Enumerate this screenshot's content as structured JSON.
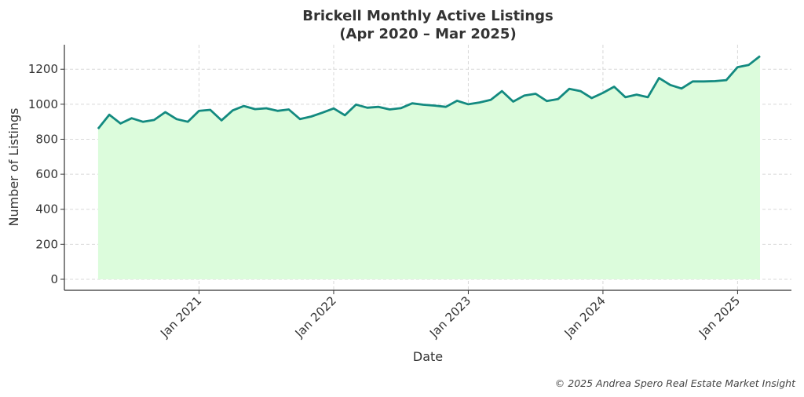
{
  "chart_data": {
    "type": "area",
    "title_line1": "Brickell Monthly Active Listings",
    "title_line2": "(Apr 2020 – Mar 2025)",
    "xlabel": "Date",
    "ylabel": "Number of Listings",
    "start_month": "2020-04",
    "x_ticks": [
      {
        "label": "Jan 2021",
        "month_index": 9
      },
      {
        "label": "Jan 2022",
        "month_index": 21
      },
      {
        "label": "Jan 2023",
        "month_index": 33
      },
      {
        "label": "Jan 2024",
        "month_index": 45
      },
      {
        "label": "Jan 2025",
        "month_index": 57
      }
    ],
    "y_ticks": [
      0,
      200,
      400,
      600,
      800,
      1000,
      1200
    ],
    "ylim": [
      -63,
      1340
    ],
    "xlim_months": [
      -3,
      61.8
    ],
    "grid": true,
    "line_color": "#138a80",
    "fill_color": "#dcfcdc",
    "values": [
      860,
      940,
      890,
      920,
      900,
      910,
      955,
      915,
      900,
      962,
      968,
      908,
      965,
      990,
      972,
      977,
      962,
      970,
      915,
      930,
      952,
      976,
      937,
      998,
      980,
      985,
      970,
      978,
      1005,
      997,
      992,
      985,
      1020,
      1000,
      1010,
      1025,
      1075,
      1015,
      1050,
      1060,
      1018,
      1030,
      1088,
      1075,
      1035,
      1065,
      1100,
      1040,
      1055,
      1040,
      1150,
      1110,
      1090,
      1130,
      1130,
      1132,
      1138,
      1212,
      1225,
      1275
    ]
  },
  "footer": "© 2025 Andrea Spero Real Estate Market Insight"
}
